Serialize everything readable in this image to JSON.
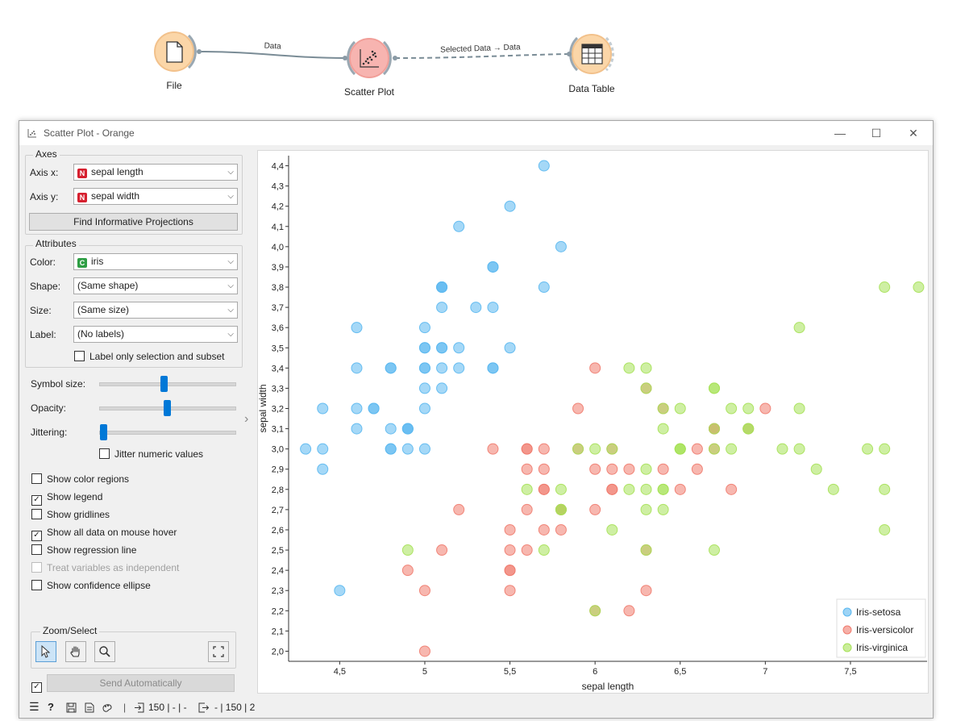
{
  "workflow": {
    "nodes": [
      {
        "label": "File",
        "icon": "file-icon"
      },
      {
        "label": "Scatter Plot",
        "icon": "scatter-plot-icon"
      },
      {
        "label": "Data Table",
        "icon": "table-icon"
      }
    ],
    "links": [
      {
        "label": "Data"
      },
      {
        "label": "Selected Data → Data"
      }
    ]
  },
  "window": {
    "title": "Scatter Plot - Orange",
    "controls": {
      "minimize": "—",
      "maximize": "☐",
      "close": "✕"
    }
  },
  "axes_box": {
    "title": "Axes",
    "x_label": "Axis x:",
    "x_value": "sepal length",
    "x_type": "N",
    "y_label": "Axis y:",
    "y_value": "sepal width",
    "y_type": "N",
    "find_button": "Find Informative Projections"
  },
  "attributes_box": {
    "title": "Attributes",
    "color_label": "Color:",
    "color_value": "iris",
    "color_type": "C",
    "shape_label": "Shape:",
    "shape_value": "(Same shape)",
    "size_label": "Size:",
    "size_value": "(Same size)",
    "label_label": "Label:",
    "label_value": "(No labels)",
    "label_only": "Label only selection and subset"
  },
  "sliders": {
    "symbol_size": {
      "label": "Symbol size:",
      "level": 0.5
    },
    "opacity": {
      "label": "Opacity:",
      "level": 0.53
    },
    "jittering": {
      "label": "Jittering:",
      "level": 0.0
    },
    "jitter_numeric": "Jitter numeric values"
  },
  "options": [
    {
      "label": "Show color regions",
      "checked": false,
      "enabled": true
    },
    {
      "label": "Show legend",
      "checked": true,
      "enabled": true
    },
    {
      "label": "Show gridlines",
      "checked": false,
      "enabled": true
    },
    {
      "label": "Show all data on mouse hover",
      "checked": true,
      "enabled": true
    },
    {
      "label": "Show regression line",
      "checked": false,
      "enabled": true
    },
    {
      "label": "Treat variables as independent",
      "checked": false,
      "enabled": false
    },
    {
      "label": "Show confidence ellipse",
      "checked": false,
      "enabled": true
    }
  ],
  "zoom_select": {
    "title": "Zoom/Select",
    "tools": [
      "pointer-select-icon",
      "pan-hand-icon",
      "zoom-magnifier-icon",
      "reset-zoom-icon"
    ]
  },
  "send": {
    "label": "Send Automatically",
    "checked": true
  },
  "status": {
    "input": "150 | - | -",
    "output": "- | 150 | 2"
  },
  "colors": {
    "setosa": "#5bb8f0",
    "versicolor": "#f07b6e",
    "virginica": "#a6e157",
    "accent": "#0078d7"
  },
  "chart_data": {
    "type": "scatter",
    "xlabel": "sepal length",
    "ylabel": "sepal width",
    "xlim": [
      4.2,
      7.95
    ],
    "ylim": [
      1.95,
      4.45
    ],
    "x_ticks": [
      "4,5",
      "5",
      "5,5",
      "6",
      "6,5",
      "7",
      "7,5"
    ],
    "x_tick_values": [
      4.5,
      5.0,
      5.5,
      6.0,
      6.5,
      7.0,
      7.5
    ],
    "y_ticks": [
      "2,0",
      "2,1",
      "2,2",
      "2,3",
      "2,4",
      "2,5",
      "2,6",
      "2,7",
      "2,8",
      "2,9",
      "3,0",
      "3,1",
      "3,2",
      "3,3",
      "3,4",
      "3,5",
      "3,6",
      "3,7",
      "3,8",
      "3,9",
      "4,0",
      "4,1",
      "4,2",
      "4,3",
      "4,4"
    ],
    "y_tick_values": [
      2.0,
      2.1,
      2.2,
      2.3,
      2.4,
      2.5,
      2.6,
      2.7,
      2.8,
      2.9,
      3.0,
      3.1,
      3.2,
      3.3,
      3.4,
      3.5,
      3.6,
      3.7,
      3.8,
      3.9,
      4.0,
      4.1,
      4.2,
      4.3,
      4.4
    ],
    "grid": false,
    "legend_position": "bottom-right",
    "series": [
      {
        "name": "Iris-setosa",
        "color": "#5bb8f0",
        "points": [
          [
            5.1,
            3.5
          ],
          [
            4.9,
            3.0
          ],
          [
            4.7,
            3.2
          ],
          [
            4.6,
            3.1
          ],
          [
            5.0,
            3.6
          ],
          [
            5.4,
            3.9
          ],
          [
            4.6,
            3.4
          ],
          [
            5.0,
            3.4
          ],
          [
            4.4,
            2.9
          ],
          [
            4.9,
            3.1
          ],
          [
            5.4,
            3.7
          ],
          [
            4.8,
            3.4
          ],
          [
            4.8,
            3.0
          ],
          [
            4.3,
            3.0
          ],
          [
            5.8,
            4.0
          ],
          [
            5.7,
            4.4
          ],
          [
            5.4,
            3.9
          ],
          [
            5.1,
            3.5
          ],
          [
            5.7,
            3.8
          ],
          [
            5.1,
            3.8
          ],
          [
            5.4,
            3.4
          ],
          [
            5.1,
            3.7
          ],
          [
            4.6,
            3.6
          ],
          [
            5.1,
            3.3
          ],
          [
            4.8,
            3.4
          ],
          [
            5.0,
            3.0
          ],
          [
            5.0,
            3.4
          ],
          [
            5.2,
            3.5
          ],
          [
            5.2,
            3.4
          ],
          [
            4.7,
            3.2
          ],
          [
            4.8,
            3.1
          ],
          [
            5.4,
            3.4
          ],
          [
            5.2,
            4.1
          ],
          [
            5.5,
            4.2
          ],
          [
            4.9,
            3.1
          ],
          [
            5.0,
            3.2
          ],
          [
            5.5,
            3.5
          ],
          [
            4.9,
            3.1
          ],
          [
            4.4,
            3.0
          ],
          [
            5.1,
            3.4
          ],
          [
            5.0,
            3.5
          ],
          [
            4.5,
            2.3
          ],
          [
            4.4,
            3.2
          ],
          [
            5.0,
            3.5
          ],
          [
            5.1,
            3.8
          ],
          [
            4.8,
            3.0
          ],
          [
            5.1,
            3.8
          ],
          [
            4.6,
            3.2
          ],
          [
            5.3,
            3.7
          ],
          [
            5.0,
            3.3
          ]
        ]
      },
      {
        "name": "Iris-versicolor",
        "color": "#f07b6e",
        "points": [
          [
            7.0,
            3.2
          ],
          [
            6.4,
            3.2
          ],
          [
            6.9,
            3.1
          ],
          [
            5.5,
            2.3
          ],
          [
            6.5,
            2.8
          ],
          [
            5.7,
            2.8
          ],
          [
            6.3,
            3.3
          ],
          [
            4.9,
            2.4
          ],
          [
            6.6,
            2.9
          ],
          [
            5.2,
            2.7
          ],
          [
            5.0,
            2.0
          ],
          [
            5.9,
            3.0
          ],
          [
            6.0,
            2.2
          ],
          [
            6.1,
            2.9
          ],
          [
            5.6,
            2.9
          ],
          [
            6.7,
            3.1
          ],
          [
            5.6,
            3.0
          ],
          [
            5.8,
            2.7
          ],
          [
            6.2,
            2.2
          ],
          [
            5.6,
            2.5
          ],
          [
            5.9,
            3.2
          ],
          [
            6.1,
            2.8
          ],
          [
            6.3,
            2.5
          ],
          [
            6.1,
            2.8
          ],
          [
            6.4,
            2.9
          ],
          [
            6.6,
            3.0
          ],
          [
            6.8,
            2.8
          ],
          [
            6.7,
            3.0
          ],
          [
            6.0,
            2.9
          ],
          [
            5.7,
            2.6
          ],
          [
            5.5,
            2.4
          ],
          [
            5.5,
            2.4
          ],
          [
            5.8,
            2.7
          ],
          [
            6.0,
            2.7
          ],
          [
            5.4,
            3.0
          ],
          [
            6.0,
            3.4
          ],
          [
            6.7,
            3.1
          ],
          [
            6.3,
            2.3
          ],
          [
            5.6,
            3.0
          ],
          [
            5.5,
            2.5
          ],
          [
            5.5,
            2.6
          ],
          [
            6.1,
            3.0
          ],
          [
            5.8,
            2.6
          ],
          [
            5.0,
            2.3
          ],
          [
            5.6,
            2.7
          ],
          [
            5.7,
            3.0
          ],
          [
            5.7,
            2.9
          ],
          [
            6.2,
            2.9
          ],
          [
            5.1,
            2.5
          ],
          [
            5.7,
            2.8
          ]
        ]
      },
      {
        "name": "Iris-virginica",
        "color": "#a6e157",
        "points": [
          [
            6.3,
            3.3
          ],
          [
            5.8,
            2.7
          ],
          [
            7.1,
            3.0
          ],
          [
            6.3,
            2.9
          ],
          [
            6.5,
            3.0
          ],
          [
            7.6,
            3.0
          ],
          [
            4.9,
            2.5
          ],
          [
            7.3,
            2.9
          ],
          [
            6.7,
            2.5
          ],
          [
            7.2,
            3.6
          ],
          [
            6.5,
            3.2
          ],
          [
            6.4,
            2.7
          ],
          [
            6.8,
            3.0
          ],
          [
            5.7,
            2.5
          ],
          [
            5.8,
            2.8
          ],
          [
            6.4,
            3.2
          ],
          [
            6.5,
            3.0
          ],
          [
            7.7,
            3.8
          ],
          [
            7.7,
            2.6
          ],
          [
            6.0,
            2.2
          ],
          [
            6.9,
            3.2
          ],
          [
            5.6,
            2.8
          ],
          [
            7.7,
            2.8
          ],
          [
            6.3,
            2.7
          ],
          [
            6.7,
            3.3
          ],
          [
            7.2,
            3.2
          ],
          [
            6.2,
            2.8
          ],
          [
            6.1,
            3.0
          ],
          [
            6.4,
            2.8
          ],
          [
            7.2,
            3.0
          ],
          [
            7.4,
            2.8
          ],
          [
            7.9,
            3.8
          ],
          [
            6.4,
            2.8
          ],
          [
            6.3,
            2.8
          ],
          [
            6.1,
            2.6
          ],
          [
            7.7,
            3.0
          ],
          [
            6.3,
            3.4
          ],
          [
            6.4,
            3.1
          ],
          [
            6.0,
            3.0
          ],
          [
            6.9,
            3.1
          ],
          [
            6.7,
            3.1
          ],
          [
            6.9,
            3.1
          ],
          [
            5.8,
            2.7
          ],
          [
            6.8,
            3.2
          ],
          [
            6.7,
            3.3
          ],
          [
            6.7,
            3.0
          ],
          [
            6.3,
            2.5
          ],
          [
            6.5,
            3.0
          ],
          [
            6.2,
            3.4
          ],
          [
            5.9,
            3.0
          ]
        ]
      }
    ]
  }
}
